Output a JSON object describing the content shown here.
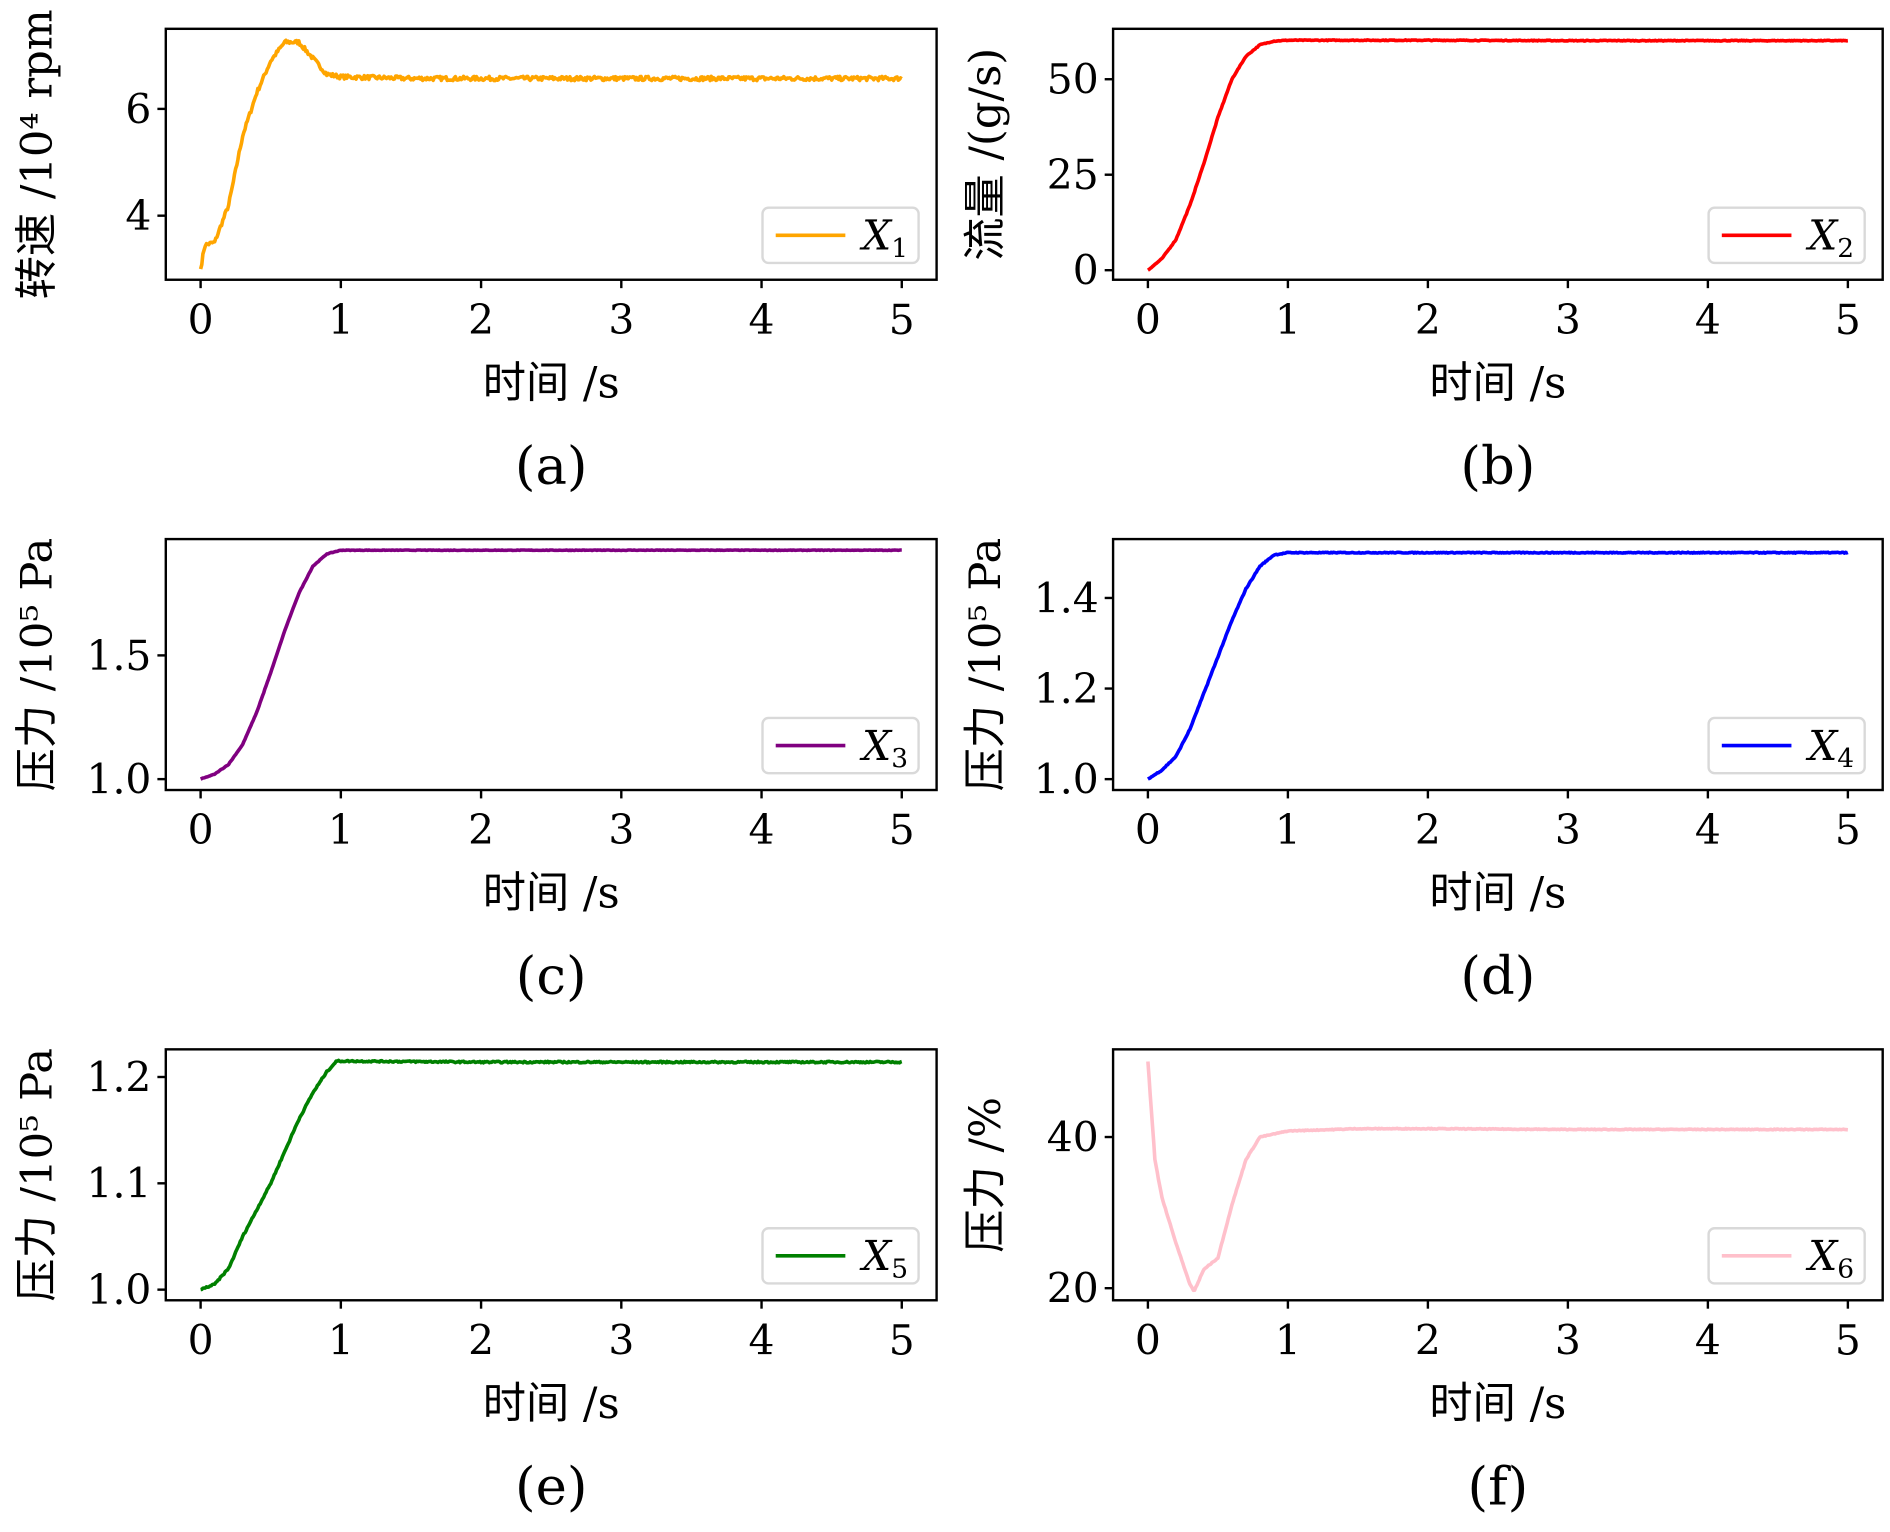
{
  "chart_data": [
    {
      "type": "line",
      "panel": "(a)",
      "title": "",
      "xlabel": "时间 /s",
      "ylabel": "转速 /10⁴ rpm",
      "legend": "X1",
      "legend_sub": "1",
      "legend_placement": "lower-right",
      "color": "#ffa500",
      "xlim": [
        0,
        5
      ],
      "ylim": [
        2.8,
        7.5
      ],
      "xticks": [
        "0",
        "1",
        "2",
        "3",
        "4",
        "5"
      ],
      "yticks": [
        4,
        6
      ],
      "ytick_labels": [
        "4",
        "6"
      ],
      "noise": 0.04,
      "x": [
        0,
        0.03,
        0.1,
        0.2,
        0.3,
        0.4,
        0.5,
        0.6,
        0.7,
        0.8,
        0.9,
        1.0,
        1.5,
        2,
        2.5,
        3,
        3.5,
        4,
        4.5,
        5
      ],
      "y": [
        3.0,
        3.45,
        3.5,
        4.2,
        5.5,
        6.3,
        6.9,
        7.25,
        7.25,
        6.95,
        6.65,
        6.6,
        6.57,
        6.57,
        6.57,
        6.57,
        6.57,
        6.57,
        6.57,
        6.57
      ]
    },
    {
      "type": "line",
      "panel": "(b)",
      "title": "",
      "xlabel": "时间 /s",
      "ylabel": "流量 /(g/s)",
      "legend": "X2",
      "legend_sub": "2",
      "legend_placement": "lower-right",
      "color": "#ff0000",
      "xlim": [
        0,
        5
      ],
      "ylim": [
        -2.5,
        63.2
      ],
      "xticks": [
        "0",
        "1",
        "2",
        "3",
        "4",
        "5"
      ],
      "yticks": [
        0,
        25,
        50
      ],
      "ytick_labels": [
        "0",
        "25",
        "50"
      ],
      "noise": 0.1,
      "x": [
        0,
        0.1,
        0.2,
        0.3,
        0.4,
        0.5,
        0.6,
        0.7,
        0.8,
        0.9,
        1.0,
        2,
        3,
        4,
        5
      ],
      "y": [
        0,
        3,
        8,
        17,
        28,
        40,
        50,
        56,
        59,
        60,
        60.2,
        60.2,
        60.1,
        60.1,
        60.1
      ]
    },
    {
      "type": "line",
      "panel": "(c)",
      "title": "",
      "xlabel": "时间 /s",
      "ylabel": "压力 /10⁵ Pa",
      "legend": "X3",
      "legend_sub": "3",
      "legend_placement": "lower-right",
      "color": "#800080",
      "xlim": [
        0,
        5
      ],
      "ylim": [
        0.956,
        1.97
      ],
      "xticks": [
        "0",
        "1",
        "2",
        "3",
        "4",
        "5"
      ],
      "yticks": [
        1.0,
        1.5
      ],
      "ytick_labels": [
        "1.0",
        "1.5"
      ],
      "noise": 0.001,
      "x": [
        0,
        0.1,
        0.2,
        0.3,
        0.4,
        0.5,
        0.6,
        0.7,
        0.8,
        0.9,
        1.0,
        2,
        3,
        4,
        5
      ],
      "y": [
        1.0,
        1.02,
        1.06,
        1.14,
        1.27,
        1.43,
        1.6,
        1.75,
        1.86,
        1.91,
        1.925,
        1.925,
        1.925,
        1.925,
        1.925
      ]
    },
    {
      "type": "line",
      "panel": "(d)",
      "title": "",
      "xlabel": "时间 /s",
      "ylabel": "压力 /10⁵ Pa",
      "legend": "X4",
      "legend_sub": "4",
      "legend_placement": "lower-right",
      "color": "#0000ff",
      "xlim": [
        0,
        5
      ],
      "ylim": [
        0.976,
        1.53
      ],
      "xticks": [
        "0",
        "1",
        "2",
        "3",
        "4",
        "5"
      ],
      "yticks": [
        1.0,
        1.2,
        1.4
      ],
      "ytick_labels": [
        "1.0",
        "1.2",
        "1.4"
      ],
      "noise": 0.001,
      "x": [
        0,
        0.1,
        0.2,
        0.3,
        0.4,
        0.5,
        0.6,
        0.7,
        0.8,
        0.9,
        1.0,
        2,
        3,
        4,
        5
      ],
      "y": [
        1.0,
        1.02,
        1.05,
        1.11,
        1.19,
        1.27,
        1.35,
        1.42,
        1.47,
        1.495,
        1.5,
        1.5,
        1.5,
        1.5,
        1.5
      ]
    },
    {
      "type": "line",
      "panel": "(e)",
      "title": "",
      "xlabel": "时间 /s",
      "ylabel": "压力 /10⁵ Pa",
      "legend": "X5",
      "legend_sub": "5",
      "legend_placement": "lower-right",
      "color": "#008000",
      "xlim": [
        0,
        5
      ],
      "ylim": [
        0.99,
        1.226
      ],
      "xticks": [
        "0",
        "1",
        "2",
        "3",
        "4",
        "5"
      ],
      "yticks": [
        1.0,
        1.1,
        1.2
      ],
      "ytick_labels": [
        "1.0",
        "1.1",
        "1.2"
      ],
      "noise": 0.0007,
      "x": [
        0,
        0.1,
        0.2,
        0.3,
        0.4,
        0.5,
        0.6,
        0.7,
        0.8,
        0.9,
        0.97,
        1.0,
        2,
        3,
        4,
        5
      ],
      "y": [
        1.0,
        1.005,
        1.02,
        1.05,
        1.075,
        1.1,
        1.13,
        1.16,
        1.185,
        1.205,
        1.215,
        1.215,
        1.214,
        1.214,
        1.214,
        1.214
      ]
    },
    {
      "type": "line",
      "panel": "(f)",
      "title": "",
      "xlabel": "时间 /s",
      "ylabel": "压力 /%",
      "legend": "X6",
      "legend_sub": "6",
      "legend_placement": "lower-right",
      "color": "#ffc0cb",
      "xlim": [
        0,
        5
      ],
      "ylim": [
        18.4,
        51.6
      ],
      "xticks": [
        "0",
        "1",
        "2",
        "3",
        "4",
        "5"
      ],
      "yticks": [
        20,
        40
      ],
      "ytick_labels": [
        "20",
        "40"
      ],
      "noise": 0.05,
      "x": [
        0,
        0.05,
        0.1,
        0.2,
        0.3,
        0.33,
        0.4,
        0.5,
        0.6,
        0.7,
        0.8,
        1.0,
        1.5,
        2,
        3,
        4,
        5
      ],
      "y": [
        50,
        37,
        32,
        26,
        20.5,
        19.6,
        22.5,
        24,
        31,
        37,
        40,
        40.8,
        41.1,
        41.1,
        41,
        41,
        41
      ]
    }
  ]
}
